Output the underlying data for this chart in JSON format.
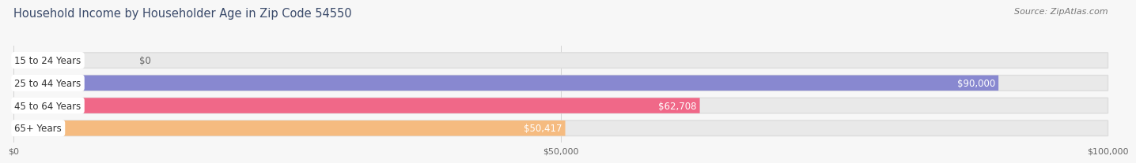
{
  "title": "Household Income by Householder Age in Zip Code 54550",
  "source": "Source: ZipAtlas.com",
  "categories": [
    "15 to 24 Years",
    "25 to 44 Years",
    "45 to 64 Years",
    "65+ Years"
  ],
  "values": [
    0,
    90000,
    62708,
    50417
  ],
  "labels": [
    "$0",
    "$90,000",
    "$62,708",
    "$50,417"
  ],
  "bar_colors": [
    "#5ecfca",
    "#8888d0",
    "#f06888",
    "#f5bb80"
  ],
  "background_color": "#f7f7f7",
  "bar_bg_color": "#e9e9e9",
  "row_bg_color": "#ffffff",
  "xlim": [
    0,
    100000
  ],
  "xtick_labels": [
    "$0",
    "$50,000",
    "$100,000"
  ],
  "title_color": "#3a4a6a",
  "title_fontsize": 10.5,
  "source_fontsize": 8,
  "label_fontsize": 8.5,
  "category_fontsize": 8.5,
  "bar_height": 0.68,
  "label_color_inside": "#ffffff",
  "label_color_outside": "#666666"
}
